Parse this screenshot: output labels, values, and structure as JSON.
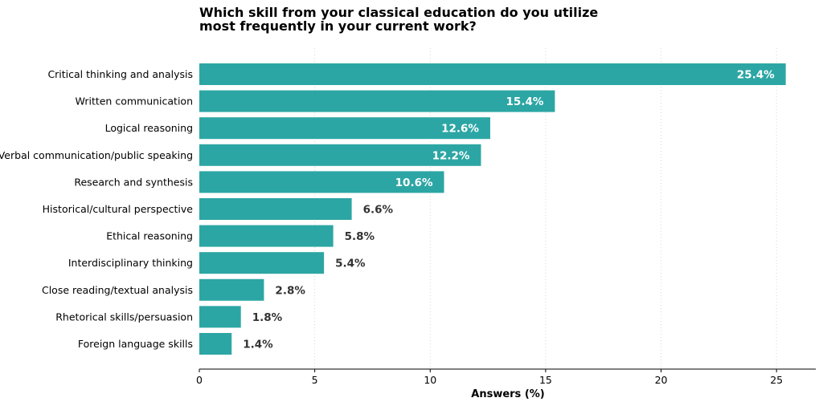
{
  "chart_data": {
    "type": "bar",
    "orientation": "horizontal",
    "title_lines": [
      "Which skill from your classical education do you utilize",
      "most frequently in your current work?"
    ],
    "xlabel": "Answers (%)",
    "ylabel": "",
    "xlim": [
      0,
      26.7
    ],
    "xticks": [
      0,
      5,
      10,
      15,
      20,
      25
    ],
    "grid": "vertical dotted",
    "bar_color": "#2ca6a4",
    "categories": [
      "Critical thinking and analysis",
      "Written communication",
      "Logical reasoning",
      "Verbal communication/public speaking",
      "Research and synthesis",
      "Historical/cultural perspective",
      "Ethical reasoning",
      "Interdisciplinary thinking",
      "Close reading/textual analysis",
      "Rhetorical skills/persuasion",
      "Foreign language skills"
    ],
    "values": [
      25.4,
      15.4,
      12.6,
      12.2,
      10.6,
      6.6,
      5.8,
      5.4,
      2.8,
      1.8,
      1.4
    ],
    "value_labels": [
      "25.4%",
      "15.4%",
      "12.6%",
      "12.2%",
      "10.6%",
      "6.6%",
      "5.8%",
      "5.4%",
      "2.8%",
      "1.8%",
      "1.4%"
    ]
  }
}
